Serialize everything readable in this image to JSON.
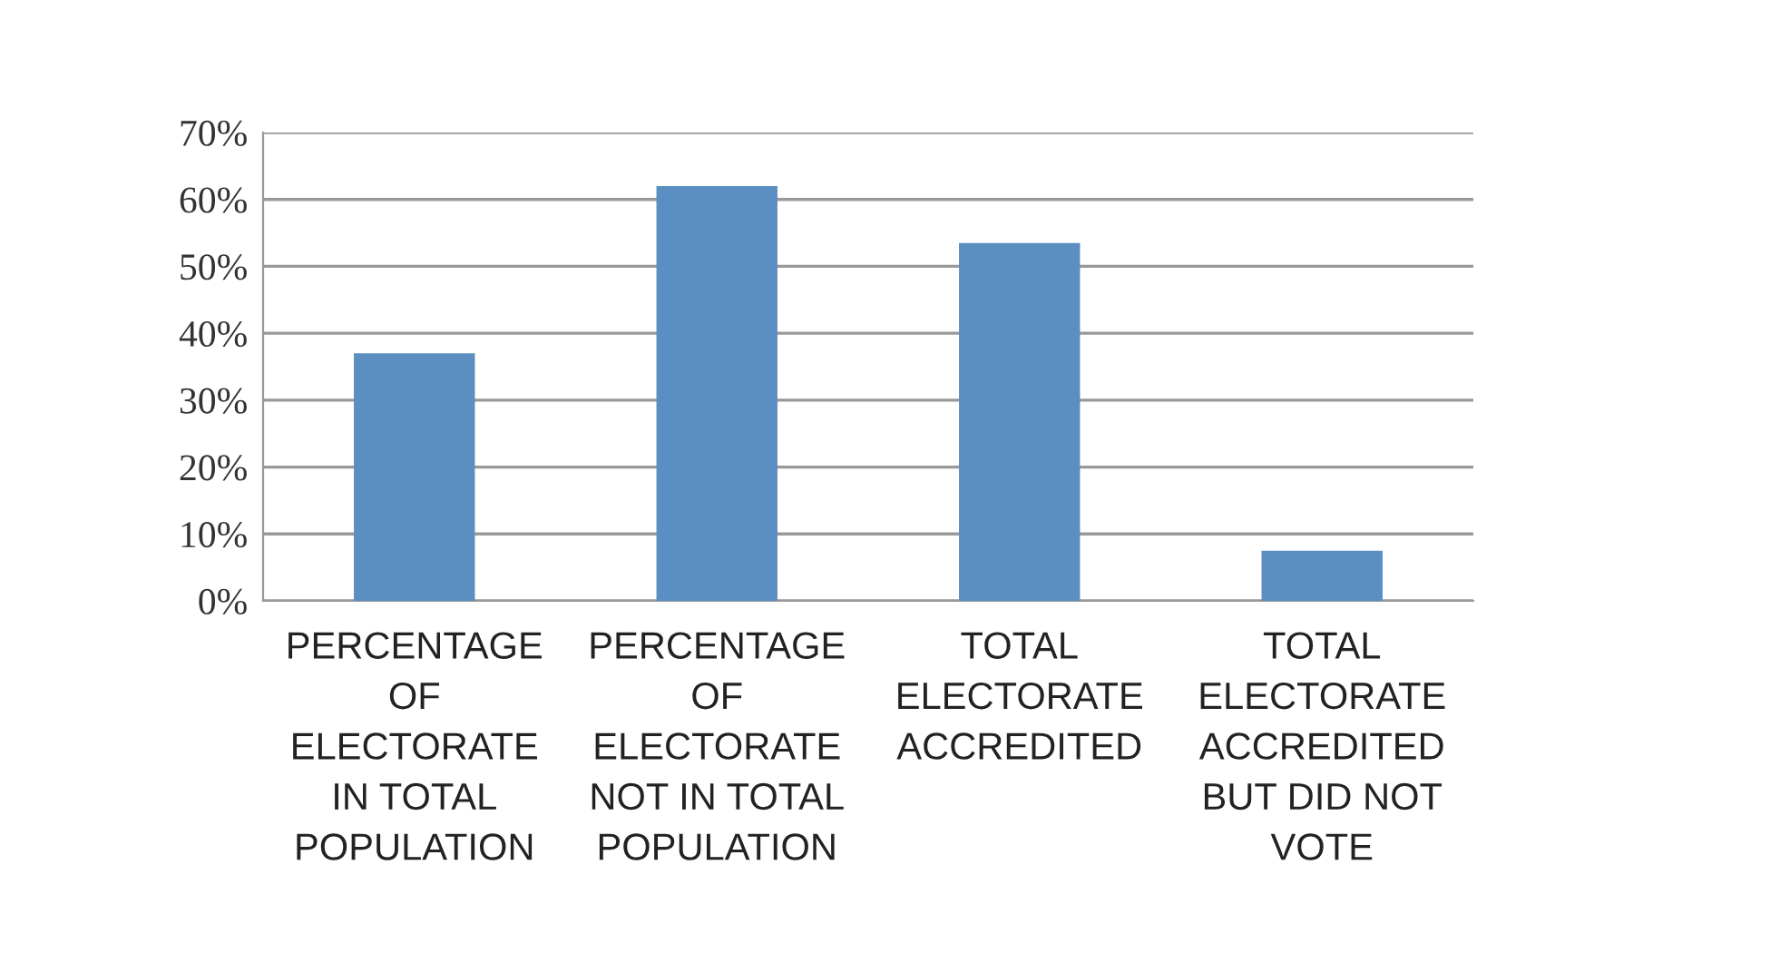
{
  "chart_data": {
    "type": "bar",
    "categories": [
      "PERCENTAGE\nOF\nELECTORATE\nIN TOTAL\nPOPULATION",
      "PERCENTAGE\nOF\nELECTORATE\nNOT IN TOTAL\nPOPULATION",
      "TOTAL\nELECTORATE\nACCREDITED",
      "TOTAL\nELECTORATE\nACCREDITED\nBUT DID NOT\nVOTE"
    ],
    "values": [
      37,
      62,
      53.5,
      7.5
    ],
    "color": "#5b8ec1",
    "ylim": [
      0,
      70
    ],
    "yticks": [
      {
        "value": 0,
        "label": "0%"
      },
      {
        "value": 10,
        "label": "10%"
      },
      {
        "value": 20,
        "label": "20%"
      },
      {
        "value": 30,
        "label": "30%"
      },
      {
        "value": 40,
        "label": "40%"
      },
      {
        "value": 50,
        "label": "50%"
      },
      {
        "value": 60,
        "label": "60%"
      },
      {
        "value": 70,
        "label": "70%"
      }
    ],
    "grid": "y",
    "legend": false
  }
}
